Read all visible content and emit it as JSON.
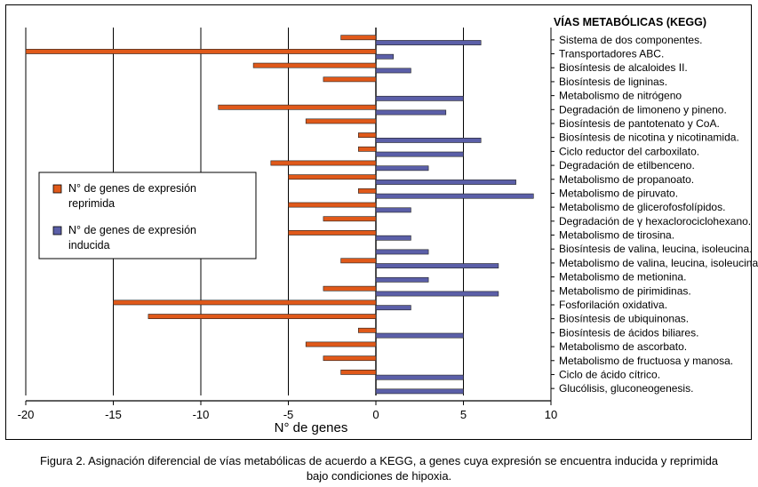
{
  "figure": {
    "caption": "Figura 2. Asignación diferencial de vías metabólicas de acuerdo a KEGG, a genes cuya expresión se encuentra inducida y reprimida bajo condiciones de hipoxia."
  },
  "chart_data": {
    "type": "bar",
    "orientation": "horizontal",
    "title": "VÍAS METABÓLICAS (KEGG)",
    "xlabel": "N° de genes",
    "ylabel": "",
    "xlim": [
      -20,
      10
    ],
    "xticks": [
      -20,
      -15,
      -10,
      -5,
      0,
      5,
      10
    ],
    "grid": true,
    "legend_position": "left-middle",
    "categories": [
      "Sistema de dos componentes.",
      "Transportadores ABC.",
      "Biosíntesis de alcaloides II.",
      "Biosíntesis de ligninas.",
      "Metabolismo de nitrógeno",
      "Degradación de limoneno y pineno.",
      "Biosíntesis de pantotenato y CoA.",
      "Biosíntesis de nicotina y nicotinamida.",
      "Ciclo reductor del carboxilato.",
      "Degradación de etilbenceno.",
      "Metabolismo de propanoato.",
      "Metabolismo de piruvato.",
      "Metabolismo de glicerofosfolípidos.",
      "Degradación de γ hexaclorociclohexano.",
      "Metabolismo de tirosina.",
      "Biosíntesis de valina, leucina, isoleucina.",
      "Metabolismo de valina, leucina, isoleucina.",
      "Metabolismo de metionina.",
      "Metabolismo de pirimidinas.",
      "Fosforilación oxidativa.",
      "Biosíntesis de ubiquinonas.",
      "Biosíntesis de ácidos biliares.",
      "Metabolismo de ascorbato.",
      "Metabolismo de fructuosa y manosa.",
      "Ciclo de ácido cítrico.",
      "Glucólisis, gluconeogenesis."
    ],
    "series": [
      {
        "name": "N° de genes de expresión reprimida",
        "color": "#e0591a",
        "values": [
          -2,
          -20,
          -7,
          -3,
          0,
          -9,
          -4,
          -1,
          -1,
          -6,
          -5,
          -1,
          -5,
          -3,
          -5,
          0,
          -2,
          0,
          -3,
          -15,
          -13,
          -1,
          -4,
          -3,
          -2,
          0
        ]
      },
      {
        "name": "N° de genes de expresión inducida",
        "color": "#5b5fa8",
        "values": [
          6,
          1,
          2,
          0,
          5,
          4,
          0,
          6,
          5,
          3,
          8,
          9,
          2,
          0,
          2,
          3,
          7,
          3,
          7,
          2,
          0,
          5,
          0,
          0,
          5,
          5
        ]
      }
    ]
  }
}
